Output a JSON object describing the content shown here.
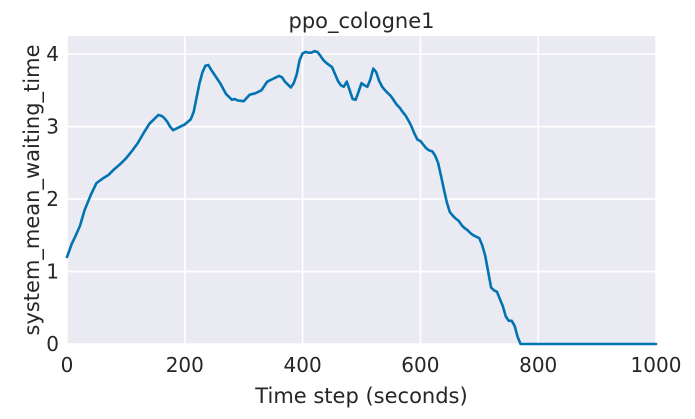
{
  "chart_data": {
    "type": "line",
    "title": "ppo_cologne1",
    "xlabel": "Time step (seconds)",
    "ylabel": "system_mean_waiting_time",
    "xlim": [
      0,
      1000
    ],
    "ylim": [
      0,
      4.25
    ],
    "xticks": [
      0,
      200,
      400,
      600,
      800,
      1000
    ],
    "yticks": [
      0,
      1,
      2,
      3,
      4
    ],
    "grid": true,
    "background": "#eaeaf2",
    "series": [
      {
        "color": "#0173b2",
        "x": [
          0,
          8,
          15,
          22,
          30,
          40,
          50,
          60,
          70,
          80,
          90,
          100,
          110,
          120,
          130,
          140,
          150,
          155,
          160,
          165,
          170,
          175,
          180,
          190,
          200,
          210,
          215,
          220,
          225,
          230,
          235,
          240,
          245,
          250,
          255,
          260,
          270,
          280,
          285,
          290,
          300,
          310,
          320,
          330,
          340,
          350,
          355,
          360,
          365,
          370,
          380,
          385,
          390,
          395,
          400,
          405,
          410,
          415,
          420,
          425,
          430,
          435,
          440,
          450,
          460,
          465,
          470,
          475,
          480,
          485,
          490,
          495,
          500,
          505,
          510,
          515,
          520,
          525,
          530,
          535,
          540,
          550,
          560,
          565,
          570,
          575,
          580,
          585,
          590,
          595,
          600,
          605,
          610,
          615,
          620,
          625,
          630,
          635,
          640,
          645,
          650,
          655,
          660,
          665,
          670,
          675,
          680,
          685,
          690,
          695,
          700,
          705,
          710,
          715,
          720,
          725,
          730,
          735,
          740,
          745,
          750,
          755,
          760,
          765,
          770,
          775,
          780,
          1000
        ],
        "y": [
          1.2,
          1.38,
          1.5,
          1.63,
          1.85,
          2.05,
          2.22,
          2.28,
          2.33,
          2.41,
          2.48,
          2.56,
          2.66,
          2.77,
          2.91,
          3.04,
          3.12,
          3.16,
          3.15,
          3.12,
          3.07,
          3.0,
          2.95,
          2.99,
          3.03,
          3.1,
          3.2,
          3.4,
          3.6,
          3.75,
          3.84,
          3.85,
          3.78,
          3.72,
          3.66,
          3.6,
          3.45,
          3.37,
          3.38,
          3.36,
          3.35,
          3.44,
          3.46,
          3.5,
          3.62,
          3.66,
          3.68,
          3.7,
          3.68,
          3.62,
          3.54,
          3.6,
          3.72,
          3.92,
          4.01,
          4.03,
          4.02,
          4.02,
          4.04,
          4.03,
          3.98,
          3.92,
          3.88,
          3.82,
          3.63,
          3.57,
          3.55,
          3.62,
          3.5,
          3.38,
          3.37,
          3.48,
          3.6,
          3.57,
          3.55,
          3.65,
          3.8,
          3.75,
          3.63,
          3.55,
          3.5,
          3.42,
          3.3,
          3.26,
          3.2,
          3.15,
          3.08,
          3.0,
          2.9,
          2.82,
          2.8,
          2.75,
          2.7,
          2.67,
          2.66,
          2.6,
          2.5,
          2.32,
          2.13,
          1.95,
          1.82,
          1.77,
          1.73,
          1.7,
          1.64,
          1.6,
          1.57,
          1.53,
          1.5,
          1.48,
          1.46,
          1.36,
          1.22,
          1.0,
          0.78,
          0.74,
          0.72,
          0.62,
          0.52,
          0.38,
          0.32,
          0.32,
          0.25,
          0.1,
          0.0,
          0.0,
          0.0,
          0.0
        ]
      }
    ]
  }
}
